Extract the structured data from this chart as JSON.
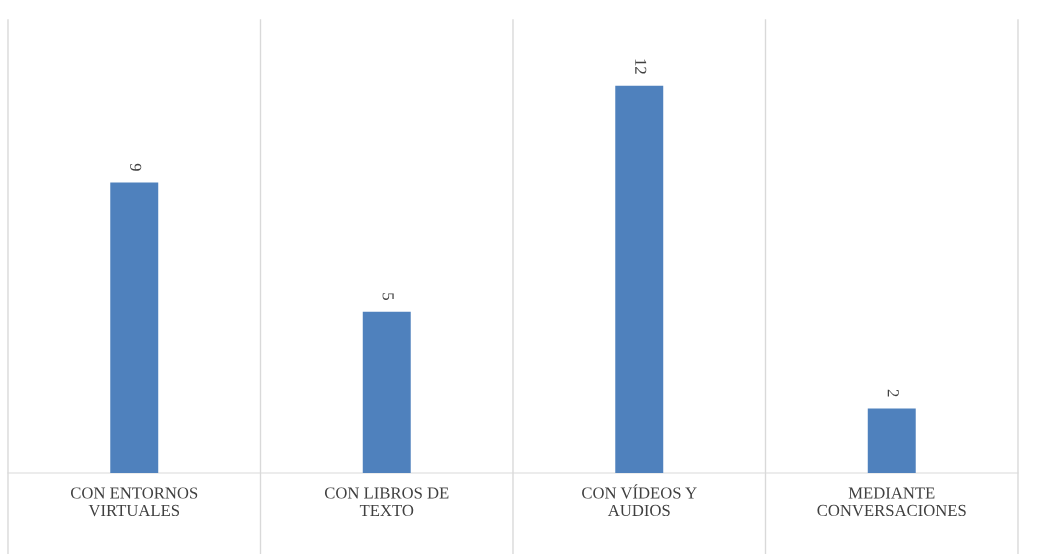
{
  "chart_data": {
    "type": "bar",
    "categories": [
      "CON ENTORNOS\nVIRTUALES",
      "CON LIBROS DE\nTEXTO",
      "CON VÍDEOS Y\nAUDIOS",
      "MEDIANTE\nCONVERSACIONES"
    ],
    "values": [
      9,
      5,
      12,
      2
    ],
    "color": "#4f81bd",
    "data_labels": true,
    "grid": "x"
  }
}
